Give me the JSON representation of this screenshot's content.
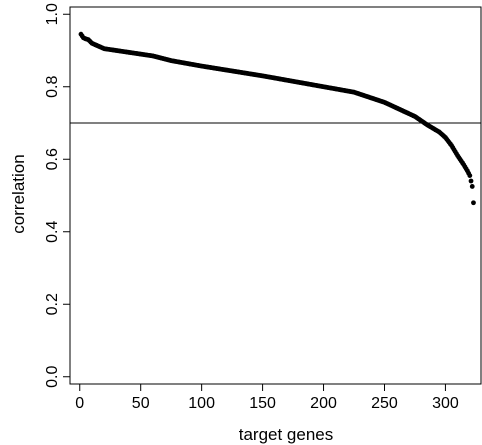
{
  "chart_data": {
    "type": "scatter",
    "title": "",
    "xlabel": "target genes",
    "ylabel": "correlation",
    "xlim": [
      -8,
      330
    ],
    "ylim": [
      -0.02,
      1.02
    ],
    "x_ticks": [
      0,
      50,
      100,
      150,
      200,
      250,
      300
    ],
    "x_tick_labels": [
      "0",
      "50",
      "100",
      "150",
      "200",
      "250",
      "300"
    ],
    "y_ticks": [
      0.0,
      0.2,
      0.4,
      0.6,
      0.8,
      1.0
    ],
    "y_tick_labels": [
      "0.0",
      "0.2",
      "0.4",
      "0.6",
      "0.8",
      "1.0"
    ],
    "reference_line": {
      "orientation": "horizontal",
      "y": 0.7
    },
    "point_color": "#000000",
    "grid": false,
    "n_points": 323,
    "curve_anchors": [
      [
        1,
        0.945
      ],
      [
        2,
        0.94
      ],
      [
        3,
        0.935
      ],
      [
        5,
        0.932
      ],
      [
        7,
        0.93
      ],
      [
        10,
        0.92
      ],
      [
        20,
        0.905
      ],
      [
        30,
        0.9
      ],
      [
        40,
        0.895
      ],
      [
        50,
        0.89
      ],
      [
        60,
        0.885
      ],
      [
        75,
        0.872
      ],
      [
        100,
        0.857
      ],
      [
        150,
        0.83
      ],
      [
        200,
        0.8
      ],
      [
        225,
        0.785
      ],
      [
        250,
        0.757
      ],
      [
        275,
        0.718
      ],
      [
        285,
        0.695
      ],
      [
        295,
        0.675
      ],
      [
        300,
        0.66
      ],
      [
        305,
        0.638
      ],
      [
        310,
        0.61
      ],
      [
        315,
        0.585
      ],
      [
        318,
        0.568
      ],
      [
        320,
        0.555
      ],
      [
        321,
        0.54
      ],
      [
        322,
        0.525
      ],
      [
        323,
        0.48
      ]
    ]
  }
}
